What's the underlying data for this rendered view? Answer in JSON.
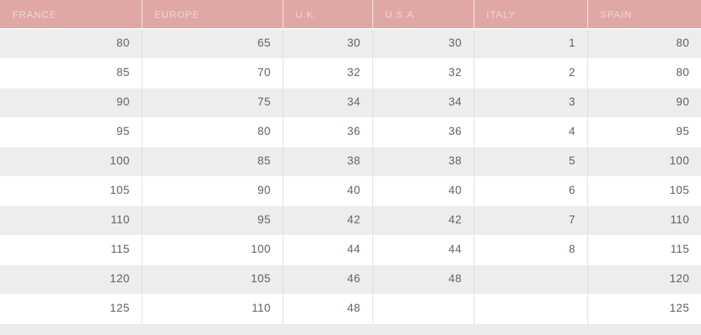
{
  "table": {
    "headers": [
      "FRANCE",
      "EUROPE",
      "U.K.",
      "U.S.A",
      "ITALY",
      "SPAIN"
    ],
    "rows": [
      [
        "80",
        "65",
        "30",
        "30",
        "1",
        "80"
      ],
      [
        "85",
        "70",
        "32",
        "32",
        "2",
        "80"
      ],
      [
        "90",
        "75",
        "34",
        "34",
        "3",
        "90"
      ],
      [
        "95",
        "80",
        "36",
        "36",
        "4",
        "95"
      ],
      [
        "100",
        "85",
        "38",
        "38",
        "5",
        "100"
      ],
      [
        "105",
        "90",
        "40",
        "40",
        "6",
        "105"
      ],
      [
        "110",
        "95",
        "42",
        "42",
        "7",
        "110"
      ],
      [
        "115",
        "100",
        "44",
        "44",
        "8",
        "115"
      ],
      [
        "120",
        "105",
        "46",
        "48",
        "",
        "120"
      ],
      [
        "125",
        "110",
        "48",
        "",
        "",
        "125"
      ]
    ]
  },
  "colors": {
    "header_bg": "#dfa8a4",
    "header_text": "#f0d8d5",
    "row_alt_bg": "#ededee",
    "row_bg": "#ffffff",
    "cell_text": "#606265",
    "border": "#d9dadb",
    "page_bg": "#ebecec"
  }
}
